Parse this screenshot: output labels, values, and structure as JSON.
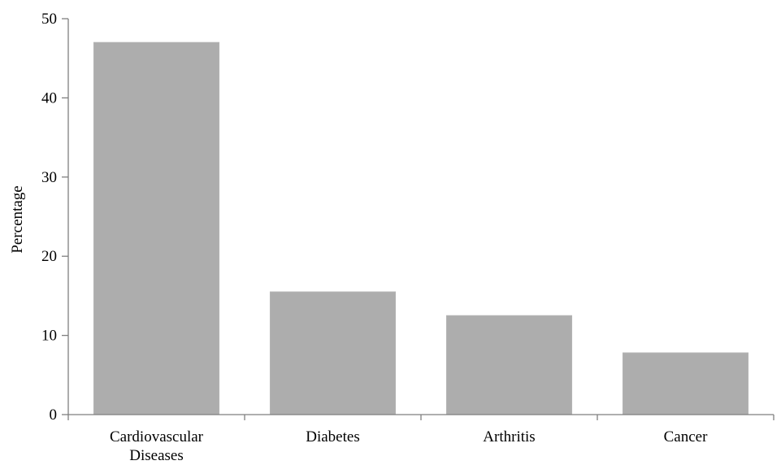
{
  "chart_data": {
    "type": "bar",
    "title": "",
    "xlabel": "",
    "ylabel": "Percentage",
    "ylim": [
      0,
      50
    ],
    "yticks": [
      0,
      10,
      20,
      30,
      40,
      50
    ],
    "categories": [
      [
        "Cardiovascular",
        "Diseases"
      ],
      [
        "Diabetes"
      ],
      [
        "Arthritis"
      ],
      [
        "Cancer"
      ]
    ],
    "values": [
      47,
      15.5,
      12.5,
      7.8
    ],
    "grid": false,
    "legend": "none",
    "colors": {
      "bar": "#adadad",
      "axis": "#7f7f7f",
      "text": "#000000"
    }
  }
}
